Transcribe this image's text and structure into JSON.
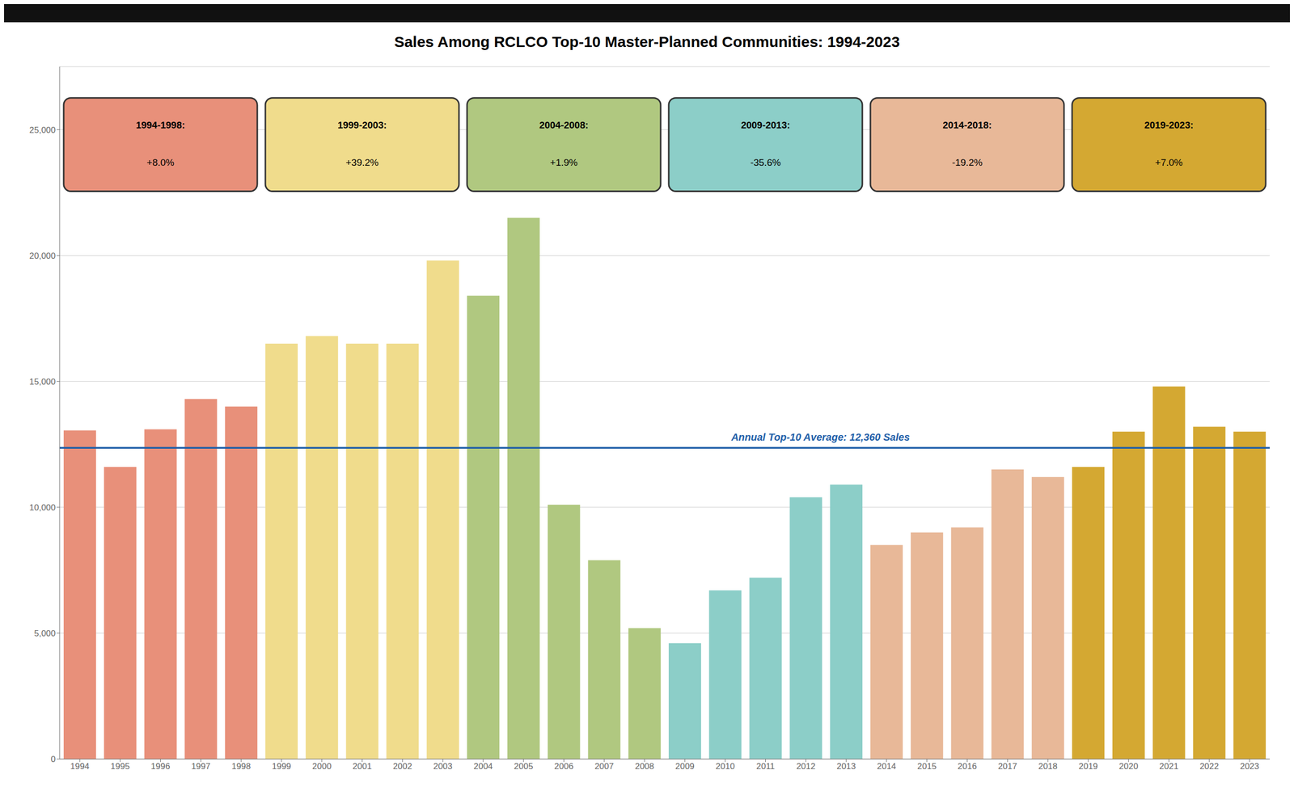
{
  "chart_data": {
    "type": "bar",
    "title": "Sales Among RCLCO Top-10 Master-Planned Communities: 1994-2023",
    "categories": [
      "1994",
      "1995",
      "1996",
      "1997",
      "1998",
      "1999",
      "2000",
      "2001",
      "2002",
      "2003",
      "2004",
      "2005",
      "2006",
      "2007",
      "2008",
      "2009",
      "2010",
      "2011",
      "2012",
      "2013",
      "2014",
      "2015",
      "2016",
      "2017",
      "2018",
      "2019",
      "2020",
      "2021",
      "2022",
      "2023"
    ],
    "values": [
      13050,
      11600,
      13100,
      14300,
      14000,
      16500,
      16800,
      16500,
      16500,
      19800,
      18400,
      21500,
      10100,
      7900,
      5200,
      4600,
      6700,
      7200,
      10400,
      10900,
      8500,
      9000,
      9200,
      11500,
      11200,
      11600,
      13000,
      14800,
      13200,
      13000
    ],
    "colors": [
      "#E8907A",
      "#E8907A",
      "#E8907A",
      "#E8907A",
      "#E8907A",
      "#F0DC8C",
      "#F0DC8C",
      "#F0DC8C",
      "#F0DC8C",
      "#F0DC8C",
      "#B0C880",
      "#B0C880",
      "#B0C880",
      "#B0C880",
      "#B0C880",
      "#8CCEC8",
      "#8CCEC8",
      "#8CCEC8",
      "#8CCEC8",
      "#8CCEC8",
      "#E8B898",
      "#E8B898",
      "#E8B898",
      "#E8B898",
      "#E8B898",
      "#D4A832",
      "#D4A832",
      "#D4A832",
      "#D4A832",
      "#D4A832"
    ],
    "ylim": [
      0,
      27500
    ],
    "yticks": [
      0,
      {
        "value": 5000,
        "label": "5,000"
      },
      {
        "value": 10000,
        "label": "10,000"
      },
      {
        "value": 15000,
        "label": "15,000"
      },
      {
        "value": 20000,
        "label": "20,000"
      },
      {
        "value": 25000,
        "label": "25,000"
      }
    ],
    "grid": true,
    "reference_line": {
      "value": 12360,
      "label": "Annual Top-10 Average: 12,360 Sales",
      "color": "#1E5EA8"
    },
    "annotations": [
      {
        "text": "1994-1998:",
        "change": "+8.0%",
        "start": "1994",
        "end": "1998",
        "color": "#E8907A"
      },
      {
        "text": "1999-2003:",
        "change": "+39.2%",
        "start": "1999",
        "end": "2003",
        "color": "#F0DC8C"
      },
      {
        "text": "2004-2008:",
        "change": "+1.9%",
        "start": "2004",
        "end": "2008",
        "color": "#B0C880"
      },
      {
        "text": "2009-2013:",
        "change": "-35.6%",
        "start": "2009",
        "end": "2013",
        "color": "#8CCEC8"
      },
      {
        "text": "2014-2018:",
        "change": "-19.2%",
        "start": "2014",
        "end": "2018",
        "color": "#E8B898"
      },
      {
        "text": "2019-2023:",
        "change": "+7.0%",
        "start": "2019",
        "end": "2023",
        "color": "#D4A832"
      }
    ]
  }
}
